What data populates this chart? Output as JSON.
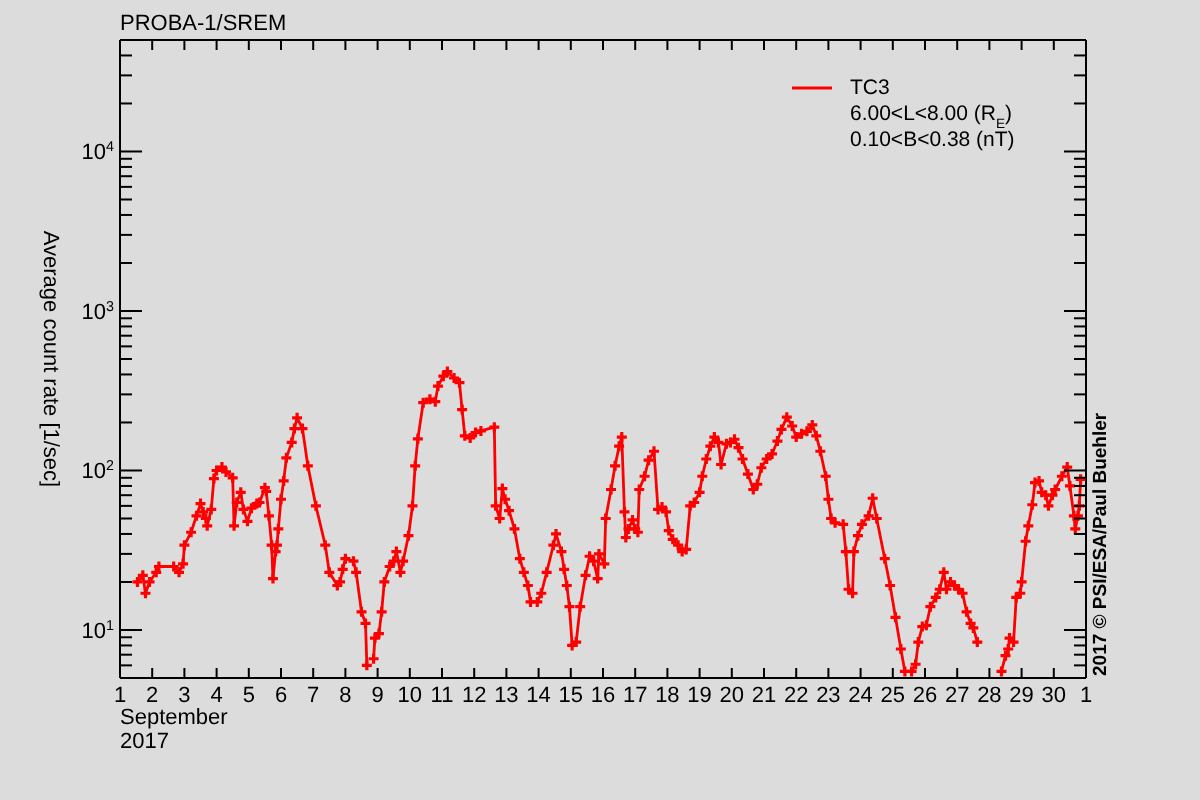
{
  "chart_data": {
    "type": "line",
    "title": "PROBA-1/SREM",
    "xlabel": "September\n2017",
    "ylabel": "Average count rate [1/sec]",
    "annotations": [
      "6.00<L<8.00 (R$_{E}$)",
      "0.10<B<0.38 (nT)",
      "2017 © PSI/ESA/Paul Buehler"
    ],
    "x": [
      "2017-09-01T13:00",
      "2017-09-01T17:00",
      "2017-09-01T19:00",
      "2017-09-01T22:00",
      "2017-09-02T03:00",
      "2017-09-02T05:00",
      "2017-09-02T16:00",
      "2017-09-02T20:00",
      "2017-09-02T23:00",
      "2017-09-03T00:00",
      "2017-09-03T05:00",
      "2017-09-03T09:00",
      "2017-09-03T12:00",
      "2017-09-03T14:00",
      "2017-09-03T16:00",
      "2017-09-03T17:00",
      "2017-09-03T20:00",
      "2017-09-03T22:00",
      "2017-09-04T00:00",
      "2017-09-04T04:00",
      "2017-09-04T07:00",
      "2017-09-04T12:00",
      "2017-09-04T13:00",
      "2017-09-04T15:00",
      "2017-09-04T18:00",
      "2017-09-04T20:00",
      "2017-09-04T23:00",
      "2017-09-05T02:00",
      "2017-09-05T06:00",
      "2017-09-05T08:00",
      "2017-09-05T12:00",
      "2017-09-05T13:00",
      "2017-09-05T15:00",
      "2017-09-05T17:00",
      "2017-09-05T18:00",
      "2017-09-05T20:00",
      "2017-09-05T21:00",
      "2017-09-05T22:00",
      "2017-09-06T00:00",
      "2017-09-06T02:00",
      "2017-09-06T04:00",
      "2017-09-06T08:00",
      "2017-09-06T10:00",
      "2017-09-06T12:00",
      "2017-09-06T16:00",
      "2017-09-06T20:00",
      "2017-09-07T02:00",
      "2017-09-07T09:00",
      "2017-09-07T12:00",
      "2017-09-07T18:00",
      "2017-09-07T20:00",
      "2017-09-07T22:00",
      "2017-09-08T00:00",
      "2017-09-08T06:00",
      "2017-09-08T08:00",
      "2017-09-08T12:00",
      "2017-09-08T15:00",
      "2017-09-08T16:00",
      "2017-09-08T18:00",
      "2017-09-08T21:00",
      "2017-09-08T22:00",
      "2017-09-09T01:00",
      "2017-09-09T03:00",
      "2017-09-09T05:00",
      "2017-09-09T09:00",
      "2017-09-09T12:00",
      "2017-09-09T14:00",
      "2017-09-09T17:00",
      "2017-09-09T19:00",
      "2017-09-09T23:00",
      "2017-09-10T02:00",
      "2017-09-10T04:00",
      "2017-09-10T06:00",
      "2017-09-10T10:00",
      "2017-09-10T15:00",
      "2017-09-10T19:00",
      "2017-09-10T21:00",
      "2017-09-11T01:00",
      "2017-09-11T04:00",
      "2017-09-11T09:00",
      "2017-09-11T13:00",
      "2017-09-11T15:00",
      "2017-09-11T17:00",
      "2017-09-11T21:00",
      "2017-09-12T01:00",
      "2017-09-12T05:00",
      "2017-09-12T15:00",
      "2017-09-12T16:00",
      "2017-09-12T19:00",
      "2017-09-12T21:00",
      "2017-09-12T23:00",
      "2017-09-13T02:00",
      "2017-09-13T06:00",
      "2017-09-13T10:00",
      "2017-09-13T13:00",
      "2017-09-13T16:00",
      "2017-09-13T18:00",
      "2017-09-13T23:00",
      "2017-09-14T02:00",
      "2017-09-14T06:00",
      "2017-09-14T11:00",
      "2017-09-14T13:00",
      "2017-09-14T17:00",
      "2017-09-14T19:00",
      "2017-09-14T21:00",
      "2017-09-14T23:00",
      "2017-09-15T01:00",
      "2017-09-15T04:00",
      "2017-09-15T07:00",
      "2017-09-15T11:00",
      "2017-09-15T14:00",
      "2017-09-15T17:00",
      "2017-09-15T20:00",
      "2017-09-15T21:00",
      "2017-09-16T01:00",
      "2017-09-16T02:00",
      "2017-09-16T06:00",
      "2017-09-16T09:00",
      "2017-09-16T12:00",
      "2017-09-16T14:00",
      "2017-09-16T16:00",
      "2017-09-16T17:00",
      "2017-09-16T19:00",
      "2017-09-16T22:00",
      "2017-09-17T00:00",
      "2017-09-17T02:00",
      "2017-09-17T03:00",
      "2017-09-17T07:00",
      "2017-09-17T10:00",
      "2017-09-17T14:00",
      "2017-09-17T17:00",
      "2017-09-17T20:00",
      "2017-09-17T23:00",
      "2017-09-18T01:00",
      "2017-09-18T04:00",
      "2017-09-18T08:00",
      "2017-09-18T11:00",
      "2017-09-18T14:00",
      "2017-09-18T17:00",
      "2017-09-18T20:00",
      "2017-09-19T00:00",
      "2017-09-19T02:00",
      "2017-09-19T05:00",
      "2017-09-19T08:00",
      "2017-09-19T11:00",
      "2017-09-19T14:00",
      "2017-09-19T16:00",
      "2017-09-19T20:00",
      "2017-09-19T23:00",
      "2017-09-20T02:00",
      "2017-09-20T05:00",
      "2017-09-20T08:00",
      "2017-09-20T12:00",
      "2017-09-20T16:00",
      "2017-09-20T19:00",
      "2017-09-20T22:00",
      "2017-09-21T02:00",
      "2017-09-21T06:00",
      "2017-09-21T10:00",
      "2017-09-21T13:00",
      "2017-09-21T17:00",
      "2017-09-21T21:00",
      "2017-09-22T00:00",
      "2017-09-22T04:00",
      "2017-09-22T08:00",
      "2017-09-22T12:00",
      "2017-09-22T15:00",
      "2017-09-22T18:00",
      "2017-09-22T22:00",
      "2017-09-23T00:00",
      "2017-09-23T02:00",
      "2017-09-23T05:00",
      "2017-09-23T11:00",
      "2017-09-23T13:00",
      "2017-09-23T15:00",
      "2017-09-23T18:00",
      "2017-09-23T19:00",
      "2017-09-23T22:00",
      "2017-09-24T01:00",
      "2017-09-24T06:00",
      "2017-09-24T09:00",
      "2017-09-24T12:00",
      "2017-09-24T18:00",
      "2017-09-24T22:00",
      "2017-09-25T02:00",
      "2017-09-25T06:00",
      "2017-09-25T09:00",
      "2017-09-25T12:00",
      "2017-09-25T14:00",
      "2017-09-25T17:00",
      "2017-09-25T19:00",
      "2017-09-25T22:00",
      "2017-09-26T01:00",
      "2017-09-26T04:00",
      "2017-09-26T08:00",
      "2017-09-26T11:00",
      "2017-09-26T14:00",
      "2017-09-26T16:00",
      "2017-09-26T19:00",
      "2017-09-26T22:00",
      "2017-09-27T01:00",
      "2017-09-27T04:00",
      "2017-09-27T07:00",
      "2017-09-27T10:00",
      "2017-09-27T12:00",
      "2017-09-27T15:00",
      "2017-09-28T00:00",
      "2017-09-28T09:00",
      "2017-09-28T12:00",
      "2017-09-28T14:00",
      "2017-09-28T15:00",
      "2017-09-28T18:00",
      "2017-09-28T20:00",
      "2017-09-28T23:00",
      "2017-09-29T00:00",
      "2017-09-29T03:00",
      "2017-09-29T05:00",
      "2017-09-29T08:00",
      "2017-09-29T10:00",
      "2017-09-29T13:00",
      "2017-09-29T15:00",
      "2017-09-29T18:00",
      "2017-09-29T20:00",
      "2017-09-29T23:00",
      "2017-09-30T01:00",
      "2017-09-30T06:00",
      "2017-09-30T10:00",
      "2017-09-30T12:00",
      "2017-09-30T15:00",
      "2017-09-30T16:00",
      "2017-09-30T18:00",
      "2017-09-30T19:00",
      "2017-09-30T20:00"
    ],
    "series": [
      {
        "name": "TC3",
        "color": "#ff0000",
        "values": [
          20,
          22,
          17,
          20,
          23,
          25,
          25,
          23,
          26,
          34,
          41,
          52,
          62,
          55,
          50,
          45,
          57,
          89,
          100,
          105,
          98,
          90,
          45,
          63,
          73,
          57,
          48,
          58,
          62,
          63,
          78,
          74,
          52,
          34,
          21,
          31,
          34,
          43,
          66,
          86,
          120,
          150,
          183,
          214,
          183,
          107,
          60,
          34,
          23,
          19,
          20,
          24,
          28,
          27,
          23,
          13,
          11,
          6,
          null,
          6.6,
          8.9,
          9.5,
          13,
          20,
          25,
          27,
          31,
          23,
          27,
          39,
          60,
          107,
          158,
          266,
          280,
          270,
          338,
          390,
          417,
          380,
          355,
          241,
          165,
          160,
          173,
          177,
          187,
          60,
          50,
          77,
          66,
          56,
          43,
          28,
          23,
          19,
          15,
          15,
          17,
          23,
          34,
          40,
          31,
          24,
          19,
          14,
          8,
          8.4,
          14,
          22,
          29,
          27,
          21,
          30,
          26,
          50,
          76,
          107,
          142,
          162,
          55,
          38,
          43,
          49,
          43,
          41,
          76,
          92,
          116,
          132,
          57,
          59,
          55,
          42,
          37,
          34,
          31,
          32,
          60,
          63,
          73,
          92,
          118,
          142,
          162,
          150,
          109,
          147,
          150,
          157,
          139,
          118,
          95,
          76,
          82,
          104,
          118,
          127,
          153,
          181,
          216,
          190,
          162,
          170,
          176,
          193,
          165,
          132,
          92,
          66,
          50,
          47,
          46,
          31,
          18,
          17,
          31,
          39,
          46,
          52,
          67,
          50,
          28,
          19,
          12,
          7.6,
          5.5,
          null,
          5.5,
          6.1,
          8.4,
          10.5,
          10.7,
          14,
          16,
          18,
          23,
          18,
          20,
          19,
          18,
          17,
          13,
          11,
          10.3,
          8.4,
          null,
          5.5,
          6.9,
          7.6,
          8.9,
          8.4,
          16,
          17,
          20,
          36,
          45,
          61,
          84,
          86,
          73,
          70,
          60,
          70,
          76,
          92,
          105,
          80,
          52,
          43,
          52,
          60,
          88
        ]
      }
    ],
    "xlim": [
      "2017-09-01",
      "2017-10-01"
    ],
    "xticks": [
      {
        "value": "2017-09-01",
        "label": "1"
      },
      {
        "value": "2017-09-02",
        "label": "2"
      },
      {
        "value": "2017-09-03",
        "label": "3"
      },
      {
        "value": "2017-09-04",
        "label": "4"
      },
      {
        "value": "2017-09-05",
        "label": "5"
      },
      {
        "value": "2017-09-06",
        "label": "6"
      },
      {
        "value": "2017-09-07",
        "label": "7"
      },
      {
        "value": "2017-09-08",
        "label": "8"
      },
      {
        "value": "2017-09-09",
        "label": "9"
      },
      {
        "value": "2017-09-10",
        "label": "10"
      },
      {
        "value": "2017-09-11",
        "label": "11"
      },
      {
        "value": "2017-09-12",
        "label": "12"
      },
      {
        "value": "2017-09-13",
        "label": "13"
      },
      {
        "value": "2017-09-14",
        "label": "14"
      },
      {
        "value": "2017-09-15",
        "label": "15"
      },
      {
        "value": "2017-09-16",
        "label": "16"
      },
      {
        "value": "2017-09-17",
        "label": "17"
      },
      {
        "value": "2017-09-18",
        "label": "18"
      },
      {
        "value": "2017-09-19",
        "label": "19"
      },
      {
        "value": "2017-09-20",
        "label": "20"
      },
      {
        "value": "2017-09-21",
        "label": "21"
      },
      {
        "value": "2017-09-22",
        "label": "22"
      },
      {
        "value": "2017-09-23",
        "label": "23"
      },
      {
        "value": "2017-09-24",
        "label": "24"
      },
      {
        "value": "2017-09-25",
        "label": "25"
      },
      {
        "value": "2017-09-26",
        "label": "26"
      },
      {
        "value": "2017-09-27",
        "label": "27"
      },
      {
        "value": "2017-09-28",
        "label": "28"
      },
      {
        "value": "2017-09-29",
        "label": "29"
      },
      {
        "value": "2017-09-30",
        "label": "30"
      },
      {
        "value": "2017-10-01",
        "label": "1"
      }
    ],
    "ylim": [
      5,
      50000
    ],
    "yticks": [
      {
        "value": 6,
        "label": null
      },
      {
        "value": 7,
        "label": null
      },
      {
        "value": 8,
        "label": null
      },
      {
        "value": 9,
        "label": null
      },
      {
        "value": 10,
        "label": "10$^{1}$"
      },
      {
        "value": 20,
        "label": null
      },
      {
        "value": 30,
        "label": null
      },
      {
        "value": 40,
        "label": null
      },
      {
        "value": 50,
        "label": null
      },
      {
        "value": 60,
        "label": null
      },
      {
        "value": 70,
        "label": null
      },
      {
        "value": 80,
        "label": null
      },
      {
        "value": 90,
        "label": null
      },
      {
        "value": 100,
        "label": "10$^{2}$"
      },
      {
        "value": 200,
        "label": null
      },
      {
        "value": 300,
        "label": null
      },
      {
        "value": 400,
        "label": null
      },
      {
        "value": 500,
        "label": null
      },
      {
        "value": 600,
        "label": null
      },
      {
        "value": 700,
        "label": null
      },
      {
        "value": 800,
        "label": null
      },
      {
        "value": 900,
        "label": null
      },
      {
        "value": 1000,
        "label": "10$^{3}$"
      },
      {
        "value": 2000,
        "label": null
      },
      {
        "value": 3000,
        "label": null
      },
      {
        "value": 4000,
        "label": null
      },
      {
        "value": 5000,
        "label": null
      },
      {
        "value": 6000,
        "label": null
      },
      {
        "value": 7000,
        "label": null
      },
      {
        "value": 8000,
        "label": null
      },
      {
        "value": 9000,
        "label": null
      },
      {
        "value": 10000,
        "label": "10$^{4}$"
      },
      {
        "value": 20000,
        "label": null
      },
      {
        "value": 30000,
        "label": null
      },
      {
        "value": 40000,
        "label": null
      }
    ],
    "log": true,
    "legend": "top right",
    "marker": "cross",
    "line_style": "solid"
  }
}
